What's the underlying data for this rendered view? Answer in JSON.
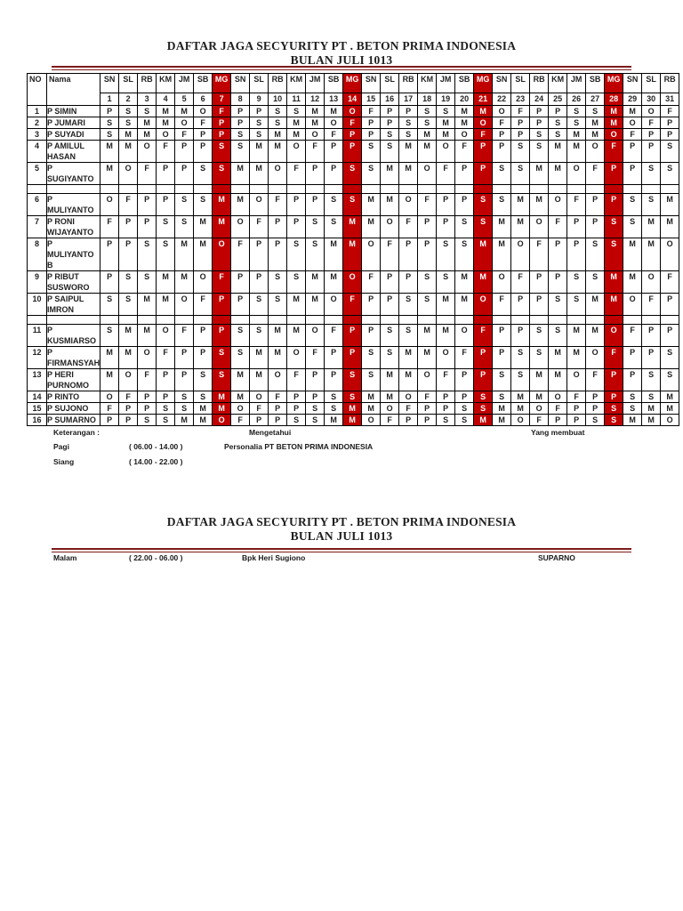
{
  "colors": {
    "weekend_red": "#C00000",
    "rule_red": "#7D1A1A"
  },
  "header": {
    "title_line1": "DAFTAR JAGA SECYURITY PT . BETON PRIMA INDONESIA",
    "title_line2": "BULAN JULI 1013"
  },
  "table": {
    "col_headers": {
      "no": "NO",
      "name": "Nama"
    },
    "days": [
      {
        "num": "1",
        "label": "SN",
        "weekend": false
      },
      {
        "num": "2",
        "label": "SL",
        "weekend": false
      },
      {
        "num": "3",
        "label": "RB",
        "weekend": false
      },
      {
        "num": "4",
        "label": "KM",
        "weekend": false
      },
      {
        "num": "5",
        "label": "JM",
        "weekend": false
      },
      {
        "num": "6",
        "label": "SB",
        "weekend": false
      },
      {
        "num": "7",
        "label": "MG",
        "weekend": true
      },
      {
        "num": "8",
        "label": "SN",
        "weekend": false
      },
      {
        "num": "9",
        "label": "SL",
        "weekend": false
      },
      {
        "num": "10",
        "label": "RB",
        "weekend": false
      },
      {
        "num": "11",
        "label": "KM",
        "weekend": false
      },
      {
        "num": "12",
        "label": "JM",
        "weekend": false
      },
      {
        "num": "13",
        "label": "SB",
        "weekend": false
      },
      {
        "num": "14",
        "label": "MG",
        "weekend": true
      },
      {
        "num": "15",
        "label": "SN",
        "weekend": false
      },
      {
        "num": "16",
        "label": "SL",
        "weekend": false
      },
      {
        "num": "17",
        "label": "RB",
        "weekend": false
      },
      {
        "num": "18",
        "label": "KM",
        "weekend": false
      },
      {
        "num": "19",
        "label": "JM",
        "weekend": false
      },
      {
        "num": "20",
        "label": "SB",
        "weekend": false
      },
      {
        "num": "21",
        "label": "MG",
        "weekend": true
      },
      {
        "num": "22",
        "label": "SN",
        "weekend": false
      },
      {
        "num": "23",
        "label": "SL",
        "weekend": false
      },
      {
        "num": "24",
        "label": "RB",
        "weekend": false
      },
      {
        "num": "25",
        "label": "KM",
        "weekend": false
      },
      {
        "num": "26",
        "label": "JM",
        "weekend": false
      },
      {
        "num": "27",
        "label": "SB",
        "weekend": false
      },
      {
        "num": "28",
        "label": "MG",
        "weekend": true
      },
      {
        "num": "29",
        "label": "SN",
        "weekend": false
      },
      {
        "num": "30",
        "label": "SL",
        "weekend": false
      },
      {
        "num": "31",
        "label": "RB",
        "weekend": false
      }
    ],
    "spacer_after_rows": [
      "5",
      "10"
    ],
    "rows": [
      {
        "no": "1",
        "name": "P SIMIN",
        "shifts": "PSSMMOFPPSSMMOFPPSSMMOFPPSSMMOF"
      },
      {
        "no": "2",
        "name": "P JUMARI",
        "shifts": "SSMMOFPPSSMMOFPPSSMMOFPPSSMMOFP"
      },
      {
        "no": "3",
        "name": "P SUYADI",
        "shifts": "SMMOFPPSSMMOFPPSSMMOFPPSSMMOFPP"
      },
      {
        "no": "4",
        "name": "P AMILUL HASAN",
        "shifts": "MMOFPPSSMMOFPPSSMMOFPPSSMMOFPPS"
      },
      {
        "no": "5",
        "name": "P SUGIYANTO",
        "shifts": "MOFPPSSMMOFPPSSMMOFPPSSMMOFPPSS"
      },
      {
        "no": "6",
        "name": "P MULIYANTO",
        "shifts": "OFPPSSMMOFPPSSMMOFPPSSMMOFPPSSM"
      },
      {
        "no": "7",
        "name": "P RONI WIJAYANTO",
        "shifts": "FPPSSMMOFPPSSMMOFPPSSMMOFPPSSMM"
      },
      {
        "no": "8",
        "name": "P MULIYANTO B",
        "shifts": "PPSSMMOFPPSSMMOFPPSSMMOFPPSSMMO"
      },
      {
        "no": "9",
        "name": "P RIBUT SUSWORO",
        "shifts": "PSSMMOFPPSSMMOFPPSSMMOFPPSSMMOF"
      },
      {
        "no": "10",
        "name": "P SAIPUL IMRON",
        "shifts": "SSMMOFPPSSMMOFPPSSMMOFPPSSMMOFP"
      },
      {
        "no": "11",
        "name": "P KUSMIARSO",
        "shifts": "SMMOFPPSSMMOFPPSSMMOFPPSSMMOFPP"
      },
      {
        "no": "12",
        "name": "P FIRMANSYAH",
        "shifts": "MMOFPPSSMMOFPPSSMMOFPPSSMMOFPPS"
      },
      {
        "no": "13",
        "name": "P HERI PURNOMO",
        "shifts": "MOFPPSSMMOFPPSSMMOFPPSSMMOFPPSS"
      },
      {
        "no": "14",
        "name": "P RINTO",
        "shifts": "OFPPSSMMOFPPSSMMOFPPSSMMOFPPSSM"
      },
      {
        "no": "15",
        "name": "P SUJONO",
        "shifts": "FPPSSMMOFPPSSMMOFPPSSMMOFPPSSMM"
      },
      {
        "no": "16",
        "name": "P SUMARNO",
        "shifts": "PPSSMMOFPPSSMMOFPPSSMMOFPPSSMMO"
      }
    ]
  },
  "legend": {
    "heading": "Keterangan :",
    "pagi_label": "Pagi",
    "pagi_time": "( 06.00 - 14.00 )",
    "siang_label": "Siang",
    "siang_time": "( 14.00 - 22.00 )"
  },
  "signatures": {
    "mengetahui_label": "Mengetahui",
    "mengetahui_name": "Personalia PT BETON PRIMA INDONESIA",
    "yang_membuat_label": "Yang membuat"
  },
  "section2": {
    "title_line1": "DAFTAR JAGA SECYURITY PT . BETON PRIMA INDONESIA",
    "title_line2": "BULAN JULI 1013",
    "malam_label": "Malam",
    "malam_time": "( 22.00 - 06.00 )",
    "mengetahui_name": "Bpk Heri  Sugiono",
    "yang_membuat_name": "SUPARNO"
  }
}
